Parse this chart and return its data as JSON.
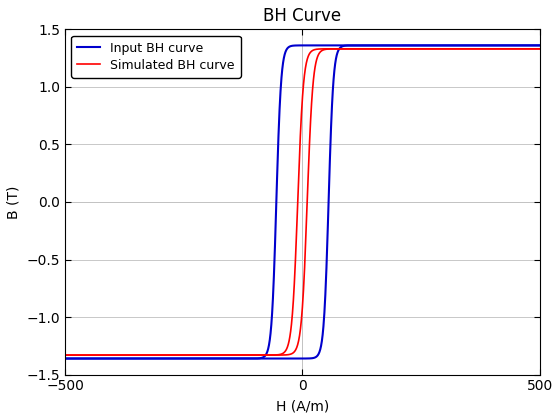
{
  "title": "BH Curve",
  "xlabel": "H (A/m)",
  "ylabel": "B (T)",
  "xlim": [
    -500,
    500
  ],
  "ylim": [
    -1.5,
    1.5
  ],
  "legend": [
    "Simulated BH curve",
    "Input BH curve"
  ],
  "simulated_color": "#FF0000",
  "input_color": "#0000CD",
  "background_color": "#FFFFFF",
  "grid_color": "#C8C8C8",
  "xticks": [
    -500,
    0,
    500
  ],
  "yticks": [
    -1.5,
    -1.0,
    -0.5,
    0.0,
    0.5,
    1.0,
    1.5
  ],
  "title_fontsize": 12,
  "label_fontsize": 10,
  "tick_fontsize": 10,
  "legend_fontsize": 9,
  "sim_linewidth": 1.2,
  "inp_linewidth": 1.5,
  "sim_Bsat": 1.33,
  "sim_steepness": 12,
  "sim_coercivity": 10,
  "inp_Bsat": 1.36,
  "inp_steepness": 10,
  "inp_coercivity": 55
}
